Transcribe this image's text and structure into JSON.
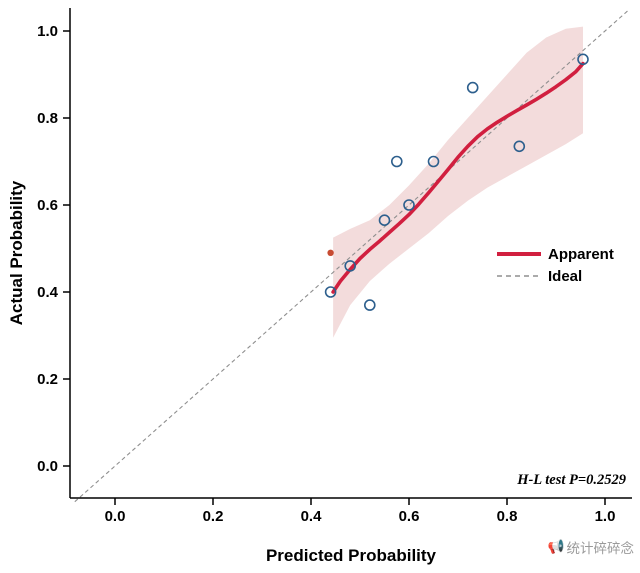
{
  "watermark": {
    "icon": "📢",
    "text": "统计碎碎念"
  },
  "chart_data": {
    "type": "scatter",
    "title": "",
    "xlabel": "Predicted Probability",
    "ylabel": "Actual Probability",
    "xlim": [
      -0.09,
      1.06
    ],
    "ylim": [
      -0.075,
      1.05
    ],
    "grid": false,
    "legend_position": "right-middle",
    "xticks": [
      0.0,
      0.2,
      0.4,
      0.6,
      0.8,
      1.0
    ],
    "yticks": [
      0.0,
      0.2,
      0.4,
      0.6,
      0.8,
      1.0
    ],
    "xtick_labels": [
      "0.0",
      "0.2",
      "0.4",
      "0.6",
      "0.8",
      "1.0"
    ],
    "ytick_labels": [
      "0.0",
      "0.2",
      "0.4",
      "0.6",
      "0.8",
      "1.0"
    ],
    "annotation": "H-L test P=0.2529",
    "legend": [
      {
        "label": "Apparent",
        "style": "solid",
        "color": "#d11f3f"
      },
      {
        "label": "Ideal",
        "style": "dashed",
        "color": "#8f8f8f"
      }
    ],
    "ideal": {
      "color": "#8f8f8f",
      "x0": -0.082,
      "x1": 1.047
    },
    "band": {
      "color": "#f3dcdc",
      "upper": [
        [
          0.445,
          0.525
        ],
        [
          0.48,
          0.545
        ],
        [
          0.52,
          0.565
        ],
        [
          0.56,
          0.6
        ],
        [
          0.6,
          0.645
        ],
        [
          0.64,
          0.695
        ],
        [
          0.68,
          0.75
        ],
        [
          0.72,
          0.8
        ],
        [
          0.76,
          0.85
        ],
        [
          0.8,
          0.9
        ],
        [
          0.84,
          0.95
        ],
        [
          0.88,
          0.985
        ],
        [
          0.92,
          1.005
        ],
        [
          0.955,
          1.01
        ]
      ],
      "lower": [
        [
          0.445,
          0.295
        ],
        [
          0.48,
          0.37
        ],
        [
          0.52,
          0.425
        ],
        [
          0.56,
          0.465
        ],
        [
          0.6,
          0.5
        ],
        [
          0.64,
          0.535
        ],
        [
          0.68,
          0.575
        ],
        [
          0.72,
          0.61
        ],
        [
          0.76,
          0.64
        ],
        [
          0.8,
          0.665
        ],
        [
          0.84,
          0.69
        ],
        [
          0.88,
          0.715
        ],
        [
          0.92,
          0.74
        ],
        [
          0.955,
          0.765
        ]
      ]
    },
    "apparent_curve": {
      "name": "Apparent",
      "color": "#d11f3f",
      "points": [
        [
          0.445,
          0.4
        ],
        [
          0.46,
          0.425
        ],
        [
          0.48,
          0.452
        ],
        [
          0.5,
          0.477
        ],
        [
          0.52,
          0.498
        ],
        [
          0.54,
          0.517
        ],
        [
          0.56,
          0.537
        ],
        [
          0.58,
          0.557
        ],
        [
          0.6,
          0.578
        ],
        [
          0.62,
          0.602
        ],
        [
          0.64,
          0.628
        ],
        [
          0.66,
          0.655
        ],
        [
          0.68,
          0.682
        ],
        [
          0.7,
          0.71
        ],
        [
          0.72,
          0.735
        ],
        [
          0.74,
          0.757
        ],
        [
          0.76,
          0.775
        ],
        [
          0.78,
          0.79
        ],
        [
          0.8,
          0.804
        ],
        [
          0.82,
          0.817
        ],
        [
          0.84,
          0.83
        ],
        [
          0.86,
          0.843
        ],
        [
          0.88,
          0.857
        ],
        [
          0.9,
          0.872
        ],
        [
          0.92,
          0.888
        ],
        [
          0.94,
          0.906
        ],
        [
          0.955,
          0.925
        ]
      ]
    },
    "scatter_points": {
      "name": "grouped-observations",
      "color": "#2d5f8d",
      "points": [
        [
          0.44,
          0.4
        ],
        [
          0.48,
          0.46
        ],
        [
          0.52,
          0.37
        ],
        [
          0.55,
          0.565
        ],
        [
          0.575,
          0.7
        ],
        [
          0.6,
          0.6
        ],
        [
          0.65,
          0.7
        ],
        [
          0.73,
          0.87
        ],
        [
          0.825,
          0.735
        ],
        [
          0.955,
          0.935
        ]
      ]
    },
    "outlier_dot": {
      "color": "#c84b32",
      "point": [
        0.44,
        0.49
      ]
    }
  }
}
